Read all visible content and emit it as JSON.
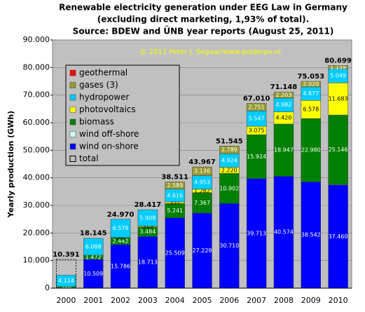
{
  "chart_data": {
    "type": "stacked-bar",
    "title": "Renewable electricity generation under EEG Law in Germany",
    "subtitle": "(excluding direct marketing, 1,93% of total).",
    "source": "Source: BDEW and ÜNB year reports (August 25, 2011)",
    "annotation": "© 2011 Peter J. Segaar/www.polderpv.nl",
    "y_label": "Yearly production (GWh)",
    "categories": [
      "2000",
      "2001",
      "2002",
      "2003",
      "2004",
      "2005",
      "2006",
      "2007",
      "2008",
      "2009",
      "2010"
    ],
    "ylim": [
      0,
      90000
    ],
    "yticks": [
      0,
      {
        "value": 10000,
        "label": "10.000"
      },
      {
        "value": 20000,
        "label": "20.000"
      },
      {
        "value": 30000,
        "label": "30.000"
      },
      {
        "value": 40000,
        "label": "40.000"
      },
      {
        "value": 50000,
        "label": "50.000"
      },
      {
        "value": 60000,
        "label": "60.000"
      },
      {
        "value": 70000,
        "label": "70.000"
      },
      {
        "value": 80000,
        "label": "80.000"
      },
      {
        "value": 90000,
        "label": "90.000"
      }
    ],
    "grid": true,
    "series": [
      {
        "name": "wind on-shore",
        "color": "#0000ff",
        "values": [
          null,
          10509,
          15786,
          18713,
          25509,
          27229,
          30710,
          39713,
          40574,
          38542,
          37460
        ],
        "value_labels": [
          null,
          "10.509",
          "15.786",
          "18.713",
          "25.509",
          "27.229",
          "30.710",
          "39.713",
          "40.574",
          "38.542",
          "37.460"
        ]
      },
      {
        "name": "wind off-shore",
        "color": "#ccffff",
        "values": [
          null,
          null,
          null,
          null,
          null,
          null,
          null,
          null,
          null,
          null,
          174
        ],
        "value_labels": [
          null,
          null,
          null,
          null,
          null,
          null,
          null,
          null,
          null,
          null,
          null
        ]
      },
      {
        "name": "biomass",
        "color": "#008000",
        "values": [
          586,
          1472,
          2442,
          3484,
          5241,
          7367,
          10902,
          15924,
          18947,
          22980,
          25146
        ],
        "value_labels": [
          "586",
          "1.472",
          "2.442",
          "3.484",
          "5.241",
          "7.367",
          "10.902",
          "15.924",
          "18.947",
          "22.980",
          "25.146"
        ]
      },
      {
        "name": "photovoltaics",
        "color": "#ffff00",
        "values": [
          null,
          null,
          162,
          313,
          557,
          1282,
          2220,
          3075,
          4420,
          6578,
          11683
        ],
        "value_labels": [
          null,
          null,
          "162",
          "313",
          "557",
          "1.282",
          "2.220",
          "3.075",
          "4.420",
          "6.578",
          "11.683"
        ]
      },
      {
        "name": "hydropower",
        "color": "#00ccff",
        "values": [
          4114,
          6088,
          6579,
          5908,
          4616,
          4953,
          4924,
          5547,
          4982,
          4877,
          5049
        ],
        "value_labels": [
          "4.114",
          "6.088",
          "6.579",
          "5.908",
          "4.616",
          "4.953",
          "4.924",
          "5.547",
          "4.982",
          "4.877",
          "5.049"
        ]
      },
      {
        "name": "gases (3)",
        "color": "#999933",
        "values": [
          null,
          null,
          null,
          null,
          2589,
          3136,
          2789,
          2751,
          2203,
          2020,
          1159
        ],
        "value_labels": [
          null,
          null,
          null,
          null,
          "2.589",
          "3.136",
          "2.789",
          "2.751",
          "2.203",
          "2.020",
          "1.159"
        ]
      },
      {
        "name": "geothermal",
        "color": "#ff0000",
        "values": [
          null,
          null,
          null,
          null,
          null,
          null,
          null,
          null,
          null,
          null,
          28
        ],
        "value_labels": [
          null,
          null,
          null,
          null,
          null,
          null,
          null,
          null,
          null,
          null,
          null
        ]
      }
    ],
    "totals": {
      "name": "total",
      "values": [
        10391,
        18145,
        24970,
        28417,
        38511,
        43967,
        51545,
        67010,
        71148,
        75053,
        80699
      ],
      "value_labels": [
        "10.391",
        "18.145",
        "24.970",
        "28.417",
        "38.511",
        "43.967",
        "51.545",
        "67.010",
        "71.148",
        "75.053",
        "80.699"
      ]
    }
  }
}
